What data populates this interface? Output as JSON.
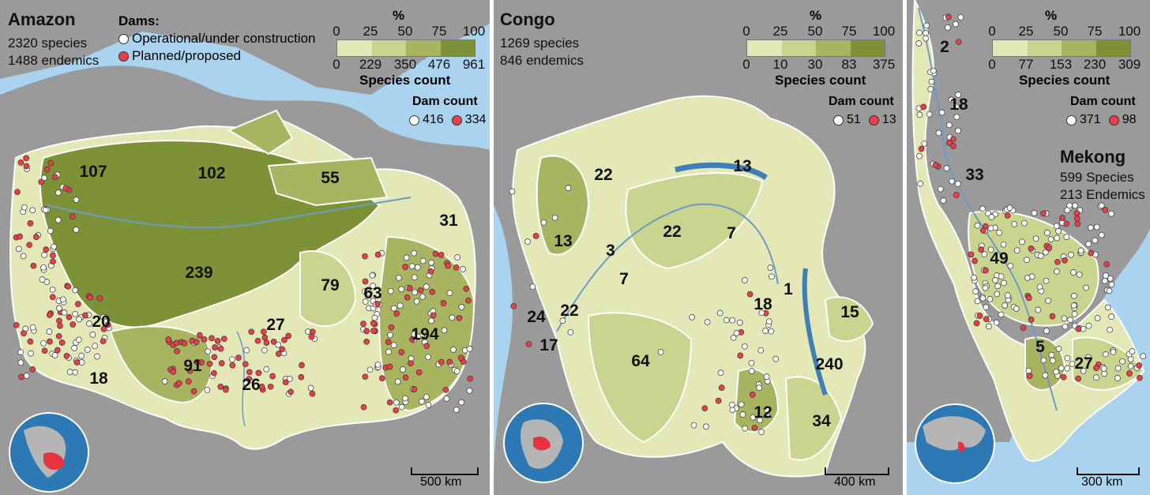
{
  "colors": {
    "water": "#a9d3ee",
    "land": "#9a9a9a",
    "basin_light": "#e3e8b6",
    "basin_mid": "#c9d48e",
    "basin_dark": "#a9b461",
    "basin_darkest": "#7d9136",
    "dam_operational": "#ffffff",
    "dam_planned": "#e8404a"
  },
  "percent_ticks": [
    "0",
    "25",
    "50",
    "75",
    "100"
  ],
  "dams_key": {
    "title": "Dams:",
    "operational": "Operational/under construction",
    "planned": "Planned/proposed"
  },
  "legend_labels": {
    "percent": "%",
    "species_count": "Species count",
    "dam_count": "Dam count"
  },
  "panels": {
    "amazon": {
      "name": "Amazon",
      "species": "2320 species",
      "endemics": "1488 endemics",
      "count_ticks": [
        "0",
        "229",
        "350",
        "476",
        "961"
      ],
      "dams_operational": "416",
      "dams_planned": "334",
      "scale": "500 km",
      "basin_numbers": [
        "107",
        "102",
        "55",
        "31",
        "239",
        "79",
        "63",
        "20",
        "27",
        "194",
        "91",
        "18",
        "26"
      ]
    },
    "congo": {
      "name": "Congo",
      "species": "1269 species",
      "endemics": "846 endemics",
      "count_ticks": [
        "0",
        "10",
        "30",
        "83",
        "375"
      ],
      "dams_operational": "51",
      "dams_planned": "13",
      "scale": "400 km",
      "basin_numbers": [
        "22",
        "13",
        "13",
        "22",
        "7",
        "3",
        "7",
        "1",
        "18",
        "15",
        "24",
        "22",
        "17",
        "64",
        "240",
        "12",
        "34"
      ]
    },
    "mekong": {
      "name": "Mekong",
      "species": "599 Species",
      "endemics": "213 Endemics",
      "count_ticks": [
        "0",
        "77",
        "153",
        "230",
        "309"
      ],
      "dams_operational": "371",
      "dams_planned": "98",
      "scale": "300 km",
      "basin_numbers": [
        "2",
        "18",
        "33",
        "49",
        "5",
        "27"
      ]
    }
  }
}
